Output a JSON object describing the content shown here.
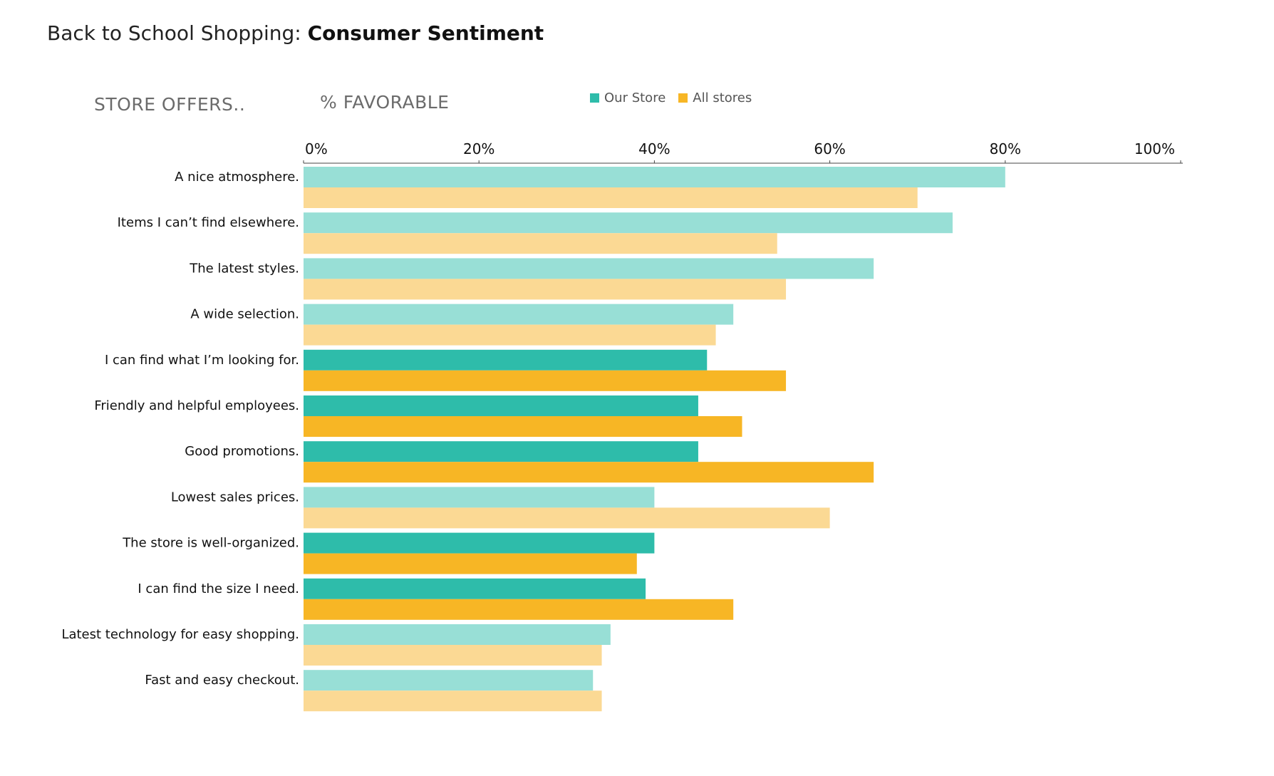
{
  "title": {
    "prefix": "Back to School Shopping: ",
    "main": "Consumer Sentiment"
  },
  "column_headers": {
    "rows": "STORE OFFERS..",
    "value": "% FAVORABLE"
  },
  "legend": [
    {
      "label": "Our Store",
      "color": "#2ebcaa"
    },
    {
      "label": "All stores",
      "color": "#f7b625"
    }
  ],
  "colors": {
    "our_store_highlight": "#2ebcaa",
    "our_store_muted": "#98dfd6",
    "all_stores_highlight": "#f7b625",
    "all_stores_muted": "#fbd994"
  },
  "chart_data": {
    "type": "bar",
    "orientation": "horizontal",
    "title": "Back to School Shopping: Consumer Sentiment",
    "xlabel": "% FAVORABLE",
    "ylabel": "STORE OFFERS..",
    "xlim": [
      0,
      100
    ],
    "x_ticks": [
      "0%",
      "20%",
      "40%",
      "60%",
      "80%",
      "100%"
    ],
    "categories": [
      "A nice atmosphere.",
      "Items I can’t find elsewhere.",
      "The latest styles.",
      "A wide selection.",
      "I can find what I’m looking for.",
      "Friendly and helpful employees.",
      "Good promotions.",
      "Lowest sales prices.",
      "The store is well-organized.",
      "I can find the size I need.",
      "Latest technology for easy shopping.",
      "Fast and easy checkout."
    ],
    "highlighted": [
      false,
      false,
      false,
      false,
      true,
      true,
      true,
      false,
      true,
      true,
      false,
      false
    ],
    "series": [
      {
        "name": "Our Store",
        "values": [
          80,
          74,
          65,
          49,
          46,
          45,
          45,
          40,
          40,
          39,
          35,
          33
        ]
      },
      {
        "name": "All stores",
        "values": [
          70,
          54,
          55,
          47,
          55,
          50,
          65,
          60,
          38,
          49,
          34,
          34
        ]
      }
    ],
    "grid": false,
    "legend_position": "top"
  }
}
